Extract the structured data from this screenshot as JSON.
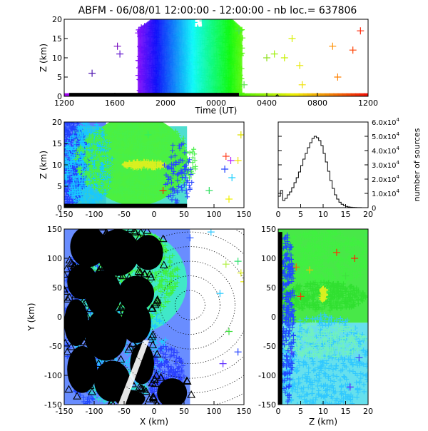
{
  "title": "ABFM - 06/08/01 12:00:00 - 12:00:00 - nb loc.= 637806",
  "chart_data": [
    {
      "id": "time_height",
      "type": "scatter",
      "xlabel": "Time (UT)",
      "ylabel": "Z (km)",
      "x_tick_labels": [
        "1200",
        "1600",
        "2000",
        "0000",
        "0400",
        "0800",
        "1200"
      ],
      "y_ticks": [
        0,
        5,
        10,
        15,
        20
      ],
      "ylim": [
        0,
        20
      ],
      "dense_bands": [
        {
          "from_tick": 1.45,
          "to_tick": 3.5,
          "z_top": 20,
          "color_scale": "time-rainbow"
        }
      ],
      "outliers": [
        {
          "t": 1.05,
          "z": 13,
          "color": "#7a10c0"
        },
        {
          "t": 1.1,
          "z": 11,
          "color": "#6a20d0"
        },
        {
          "t": 0.55,
          "z": 6,
          "color": "#5018b0"
        },
        {
          "t": 3.45,
          "z": 17,
          "color": "#40e060"
        },
        {
          "t": 3.55,
          "z": 3,
          "color": "#50e040"
        },
        {
          "t": 4.0,
          "z": 10,
          "color": "#90e020"
        },
        {
          "t": 4.15,
          "z": 11,
          "color": "#a0f010"
        },
        {
          "t": 4.35,
          "z": 10,
          "color": "#c8f000"
        },
        {
          "t": 4.5,
          "z": 15,
          "color": "#d8f000"
        },
        {
          "t": 4.65,
          "z": 8,
          "color": "#e8e800"
        },
        {
          "t": 4.7,
          "z": 3,
          "color": "#f0e000"
        },
        {
          "t": 5.3,
          "z": 13,
          "color": "#ff9000"
        },
        {
          "t": 5.4,
          "z": 5,
          "color": "#ff8000"
        },
        {
          "t": 5.7,
          "z": 12,
          "color": "#ff4000"
        },
        {
          "t": 5.85,
          "z": 17,
          "color": "#ff2000"
        }
      ]
    },
    {
      "id": "x_height",
      "type": "scatter",
      "xlabel": "",
      "ylabel": "Z (km)",
      "x_ticks": [
        -150,
        -100,
        -50,
        0,
        50,
        100,
        150
      ],
      "y_ticks": [
        0,
        5,
        10,
        15,
        20
      ],
      "xlim": [
        -150,
        150
      ],
      "ylim": [
        0,
        20
      ]
    },
    {
      "id": "altitude_histogram",
      "type": "line",
      "xlabel": "",
      "ylabel": "number of sources",
      "x_ticks": [
        0,
        5,
        10,
        15,
        20
      ],
      "y_tick_labels": [
        "0",
        "1.0x10",
        "2.0x10",
        "3.0x10",
        "4.0x10",
        "5.0x10",
        "6.0x10"
      ],
      "y_tick_exponent": "4",
      "y_ticks": [
        0,
        10000,
        20000,
        30000,
        40000,
        50000,
        60000
      ],
      "xlim": [
        0,
        20
      ],
      "ylim": [
        0,
        60000
      ],
      "x": [
        0.5,
        1,
        1.5,
        2,
        2.5,
        3,
        3.5,
        4,
        4.5,
        5,
        5.5,
        6,
        6.5,
        7,
        7.5,
        8,
        8.5,
        9,
        9.5,
        10,
        10.5,
        11,
        11.5,
        12,
        12.5,
        13,
        13.5,
        14,
        14.5,
        15,
        15.5,
        16,
        16.5,
        17,
        17.5,
        18,
        18.5,
        19,
        19.5,
        20
      ],
      "values": [
        8000,
        12000,
        5000,
        6500,
        9000,
        11000,
        14000,
        17500,
        21000,
        25000,
        29500,
        34000,
        38000,
        42000,
        45500,
        48500,
        50000,
        49000,
        47000,
        43500,
        38000,
        32000,
        25500,
        19000,
        13500,
        9000,
        6000,
        3800,
        2400,
        1500,
        900,
        500,
        300,
        200,
        120,
        60,
        40,
        20,
        10,
        0
      ]
    },
    {
      "id": "plan_view",
      "type": "scatter",
      "xlabel": "X (km)",
      "ylabel": "Y (km)",
      "x_ticks": [
        -150,
        -100,
        -50,
        0,
        50,
        100,
        150
      ],
      "y_ticks": [
        -150,
        -100,
        -50,
        0,
        50,
        100,
        150
      ],
      "xlim": [
        -150,
        150
      ],
      "ylim": [
        -150,
        150
      ],
      "range_rings_km": [
        25,
        50,
        75,
        100,
        125,
        150,
        175
      ]
    },
    {
      "id": "z_y",
      "type": "scatter",
      "xlabel": "Z (km)",
      "ylabel": "",
      "x_ticks": [
        0,
        5,
        10,
        15,
        20
      ],
      "y_ticks": [
        -150,
        -100,
        -50,
        0,
        50,
        100,
        150
      ],
      "xlim": [
        0,
        20
      ],
      "ylim": [
        -150,
        150
      ]
    }
  ]
}
